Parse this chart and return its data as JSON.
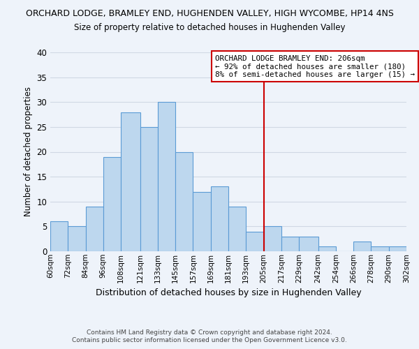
{
  "title": "ORCHARD LODGE, BRAMLEY END, HUGHENDEN VALLEY, HIGH WYCOMBE, HP14 4NS",
  "subtitle": "Size of property relative to detached houses in Hughenden Valley",
  "xlabel": "Distribution of detached houses by size in Hughenden Valley",
  "ylabel": "Number of detached properties",
  "bin_edges": [
    60,
    72,
    84,
    96,
    108,
    121,
    133,
    145,
    157,
    169,
    181,
    193,
    205,
    217,
    229,
    242,
    254,
    266,
    278,
    290,
    302
  ],
  "counts": [
    6,
    5,
    9,
    19,
    28,
    25,
    30,
    20,
    12,
    13,
    9,
    4,
    5,
    3,
    3,
    1,
    0,
    2,
    1,
    1
  ],
  "bar_color": "#bdd7ee",
  "bar_edge_color": "#5b9bd5",
  "vline_x": 205,
  "vline_color": "#cc0000",
  "annotation_title": "ORCHARD LODGE BRAMLEY END: 206sqm",
  "annotation_line1": "← 92% of detached houses are smaller (180)",
  "annotation_line2": "8% of semi-detached houses are larger (15) →",
  "annotation_box_color": "#ffffff",
  "annotation_border_color": "#cc0000",
  "tick_labels": [
    "60sqm",
    "72sqm",
    "84sqm",
    "96sqm",
    "108sqm",
    "121sqm",
    "133sqm",
    "145sqm",
    "157sqm",
    "169sqm",
    "181sqm",
    "193sqm",
    "205sqm",
    "217sqm",
    "229sqm",
    "242sqm",
    "254sqm",
    "266sqm",
    "278sqm",
    "290sqm",
    "302sqm"
  ],
  "ylim": [
    0,
    40
  ],
  "yticks": [
    0,
    5,
    10,
    15,
    20,
    25,
    30,
    35,
    40
  ],
  "grid_color": "#d0d8e4",
  "background_color": "#eef3fa",
  "footer1": "Contains HM Land Registry data © Crown copyright and database right 2024.",
  "footer2": "Contains public sector information licensed under the Open Government Licence v3.0."
}
